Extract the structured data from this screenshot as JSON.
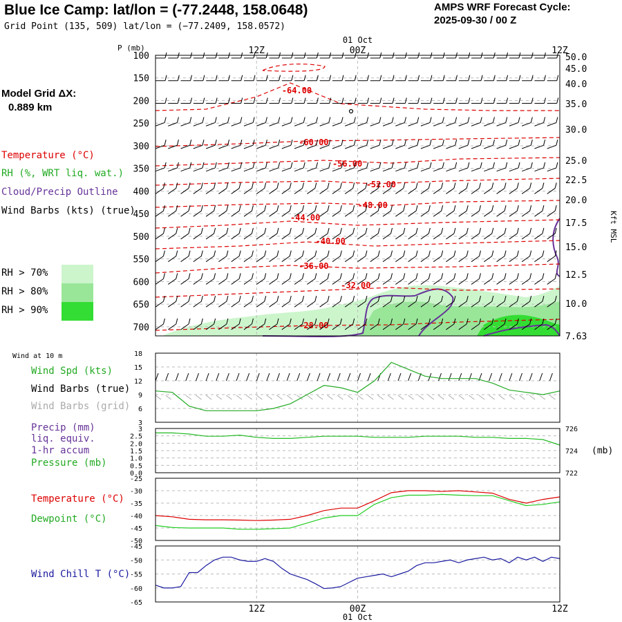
{
  "header": {
    "title": "Blue Ice Camp:  lat/lon = (-77.2448, 158.0648)",
    "subtitle": "Grid Point (135, 509) lat/lon = (−77.2409, 158.0572)",
    "cycle_line1": "AMPS WRF Forecast Cycle:",
    "cycle_line2": "2025-09-30 / 00  Z",
    "grid_line1": "Model Grid ΔX:",
    "grid_line2": "0.889 km"
  },
  "colors": {
    "temperature": "#dd0000",
    "rh": "#22aa22",
    "cloud": "#663399",
    "wind_true": "#000000",
    "wind_grid": "#aaaaaa",
    "precip": "#663399",
    "pressure": "#22bb22",
    "dewpoint": "#22cc22",
    "windchill": "#1a1aa0",
    "rh70": "#ccf5cc",
    "rh80": "#99e699",
    "rh90": "#33dd33"
  },
  "legend": {
    "temperature": "Temperature (°C)",
    "rh": "RH (%, WRT liq. wat.)",
    "cloud": "Cloud/Precip Outline",
    "wind": "Wind Barbs (kts) (true)",
    "rh70": "RH > 70%",
    "rh80": "RH > 80%",
    "rh90": "RH > 90%"
  },
  "time_axis": {
    "top_date": "01 Oct",
    "bottom_date": "01 Oct",
    "ticks": [
      "12Z",
      "00Z",
      "12Z"
    ]
  },
  "chart_data": [
    {
      "type": "line",
      "name": "upper-air-cross-section",
      "ylabel": "P (mb)",
      "right_label": "Kft MSL",
      "pressure_ticks": [
        "100",
        "150",
        "200",
        "250",
        "300",
        "350",
        "400",
        "450",
        "500",
        "550",
        "600",
        "650",
        "700"
      ],
      "height_ticks": [
        "50.0",
        "45.0",
        "40.0",
        "35.0",
        "30.0",
        "25.0",
        "22.5",
        "20.0",
        "17.5",
        "15.0",
        "12.5",
        "10.0",
        "7.63"
      ],
      "temperature_contours": [
        {
          "label": "-64.00",
          "points": [
            [
              0,
              160
            ],
            [
              6,
              158
            ],
            [
              12,
              140
            ],
            [
              16,
              120
            ],
            [
              22,
              150
            ],
            [
              32,
              158
            ],
            [
              40,
              160
            ],
            [
              48,
              160
            ]
          ]
        },
        {
          "label": "-60.00",
          "points": [
            [
              0,
              212
            ],
            [
              10,
              208
            ],
            [
              18,
              204
            ],
            [
              26,
              203
            ],
            [
              36,
              201
            ],
            [
              48,
              199
            ]
          ]
        },
        {
          "label": "-56.00",
          "points": [
            [
              0,
              240
            ],
            [
              10,
              236
            ],
            [
              20,
              232
            ],
            [
              28,
              236
            ],
            [
              36,
              230
            ],
            [
              48,
              228
            ]
          ]
        },
        {
          "label": "-52.00",
          "points": [
            [
              0,
              268
            ],
            [
              10,
              264
            ],
            [
              20,
              262
            ],
            [
              26,
              266
            ],
            [
              34,
              262
            ],
            [
              48,
              258
            ]
          ]
        },
        {
          "label": "-48.00",
          "points": [
            [
              0,
              300
            ],
            [
              10,
              296
            ],
            [
              20,
              294
            ],
            [
              28,
              297
            ],
            [
              36,
              292
            ],
            [
              48,
              290
            ]
          ]
        },
        {
          "label": "-44.00",
          "points": [
            [
              0,
              330
            ],
            [
              8,
              326
            ],
            [
              16,
              320
            ],
            [
              24,
              326
            ],
            [
              34,
              322
            ],
            [
              48,
              318
            ]
          ]
        },
        {
          "label": "-40.00",
          "points": [
            [
              0,
              360
            ],
            [
              10,
              356
            ],
            [
              18,
              350
            ],
            [
              26,
              356
            ],
            [
              36,
              352
            ],
            [
              48,
              348
            ]
          ]
        },
        {
          "label": "-36.00",
          "points": [
            [
              0,
              395
            ],
            [
              8,
              388
            ],
            [
              16,
              384
            ],
            [
              24,
              388
            ],
            [
              36,
              386
            ],
            [
              48,
              382
            ]
          ]
        },
        {
          "label": "-32.00",
          "points": [
            [
              0,
              430
            ],
            [
              10,
              425
            ],
            [
              20,
              420
            ],
            [
              28,
              416
            ],
            [
              36,
              420
            ],
            [
              48,
              418
            ]
          ]
        },
        {
          "label": "-28.00",
          "points": [
            [
              0,
              478
            ],
            [
              10,
              474
            ],
            [
              18,
              471
            ],
            [
              28,
              470
            ],
            [
              36,
              466
            ],
            [
              48,
              462
            ]
          ]
        }
      ],
      "temperature_label_positions": [
        [
          15,
          130
        ],
        [
          17,
          205
        ],
        [
          21,
          236
        ],
        [
          25,
          266
        ],
        [
          24,
          296
        ],
        [
          16,
          314
        ],
        [
          19,
          348
        ],
        [
          17,
          384
        ],
        [
          22,
          412
        ],
        [
          17,
          470
        ]
      ]
    },
    {
      "type": "line",
      "name": "surface-wind",
      "title": "Wind at 10 m",
      "legend": [
        "Wind Spd (kts)",
        "Wind Barbs (true)",
        "Wind Barbs (grid)"
      ],
      "y_ticks": [
        "18",
        "15",
        "12",
        "9",
        "6",
        "3"
      ],
      "ylim": [
        3,
        18
      ],
      "series": [
        {
          "name": "Wind Spd (kts)",
          "x": [
            0,
            2,
            4,
            6,
            8,
            10,
            12,
            14,
            16,
            18,
            20,
            22,
            24,
            26,
            28,
            30,
            32,
            34,
            36,
            38,
            40,
            42,
            44,
            46,
            48
          ],
          "values": [
            9.8,
            9.5,
            6.5,
            5.5,
            5.5,
            5.5,
            5.5,
            6.0,
            7.0,
            9.0,
            11.0,
            10.5,
            9.5,
            12.0,
            16.0,
            14.5,
            13.0,
            12.5,
            12.5,
            12.5,
            11.5,
            10.0,
            9.5,
            9.0,
            9.8
          ]
        }
      ]
    },
    {
      "type": "line",
      "name": "precip-pressure",
      "legend": [
        "Precip (mm)",
        "liq. equiv.",
        "1-hr accum",
        "Pressure (mb)"
      ],
      "y_ticks": [
        "3",
        "2.5",
        "2.0",
        "1.5",
        "1.0",
        "0.5",
        "0.0"
      ],
      "ylim": [
        0,
        3
      ],
      "right_ticks": [
        "726",
        "724",
        "722"
      ],
      "right_label": "(mb)",
      "right_ylim": [
        722,
        726
      ],
      "series": [
        {
          "name": "Pressure (mb)",
          "x": [
            0,
            2,
            4,
            6,
            8,
            10,
            12,
            14,
            16,
            18,
            20,
            22,
            24,
            26,
            28,
            30,
            32,
            34,
            36,
            38,
            40,
            42,
            44,
            46,
            48
          ],
          "values": [
            725.6,
            725.6,
            725.5,
            725.3,
            725.3,
            725.4,
            725.2,
            725.1,
            725.1,
            725.2,
            725.3,
            725.3,
            725.3,
            725.2,
            725.2,
            725.2,
            725.3,
            725.3,
            725.3,
            725.2,
            725.2,
            725.1,
            725.1,
            725.0,
            724.5
          ]
        }
      ]
    },
    {
      "type": "line",
      "name": "temperature-dewpoint",
      "legend": [
        "Temperature (°C)",
        "Dewpoint (°C)"
      ],
      "y_ticks": [
        "-25",
        "-30",
        "-35",
        "-40",
        "-45",
        "-50"
      ],
      "ylim": [
        -50,
        -25
      ],
      "series": [
        {
          "name": "Temperature (°C)",
          "x": [
            0,
            2,
            4,
            6,
            8,
            10,
            12,
            14,
            16,
            18,
            20,
            22,
            24,
            26,
            28,
            30,
            32,
            34,
            36,
            38,
            40,
            42,
            44,
            46,
            48
          ],
          "values": [
            -40,
            -40.5,
            -41.5,
            -41.7,
            -41.7,
            -41.8,
            -42.0,
            -41.8,
            -41.5,
            -40.0,
            -38.0,
            -37.0,
            -37.0,
            -34.0,
            -30.8,
            -30.0,
            -30.0,
            -30.3,
            -30.0,
            -30.5,
            -31.0,
            -33.5,
            -35.0,
            -33.5,
            -32.5
          ]
        },
        {
          "name": "Dewpoint (°C)",
          "x": [
            0,
            2,
            4,
            6,
            8,
            10,
            12,
            14,
            16,
            18,
            20,
            22,
            24,
            26,
            28,
            30,
            32,
            34,
            36,
            38,
            40,
            42,
            44,
            46,
            48
          ],
          "values": [
            -44,
            -44.8,
            -45.0,
            -45.0,
            -45.0,
            -45.5,
            -45.5,
            -45.3,
            -45.0,
            -43.0,
            -41.0,
            -40.0,
            -40.0,
            -35.5,
            -32.8,
            -31.8,
            -31.8,
            -31.5,
            -31.8,
            -32.0,
            -32.0,
            -34.0,
            -36.0,
            -35.5,
            -34.5
          ]
        }
      ]
    },
    {
      "type": "line",
      "name": "wind-chill",
      "legend": [
        "Wind Chill T (°C)"
      ],
      "y_ticks": [
        "-45",
        "-50",
        "-55",
        "-60",
        "-65"
      ],
      "ylim": [
        -65,
        -45
      ],
      "series": [
        {
          "name": "Wind Chill T (°C)",
          "x": [
            0,
            1,
            2,
            3,
            4,
            5,
            6,
            7,
            8,
            9,
            10,
            11,
            12,
            13,
            14,
            15,
            16,
            17,
            18,
            19,
            20,
            21,
            22,
            23,
            24,
            25,
            26,
            27,
            28,
            29,
            30,
            31,
            32,
            33,
            34,
            35,
            36,
            37,
            38,
            39,
            40,
            41,
            42,
            43,
            44,
            45,
            46,
            47,
            48
          ],
          "values": [
            -59,
            -60,
            -60,
            -59.5,
            -54.5,
            -54.5,
            -52,
            -50,
            -49,
            -49,
            -50,
            -50.5,
            -50.5,
            -49.5,
            -50.5,
            -53,
            -55,
            -56,
            -57,
            -58.5,
            -60.2,
            -60,
            -59.5,
            -58,
            -56.5,
            -56,
            -55.5,
            -55,
            -56,
            -55,
            -54,
            -52,
            -51,
            -51,
            -50.5,
            -50,
            -51,
            -50,
            -49.5,
            -49,
            -50,
            -49.5,
            -51,
            -49,
            -50,
            -49,
            -50.5,
            -49,
            -49.5
          ]
        }
      ]
    }
  ]
}
